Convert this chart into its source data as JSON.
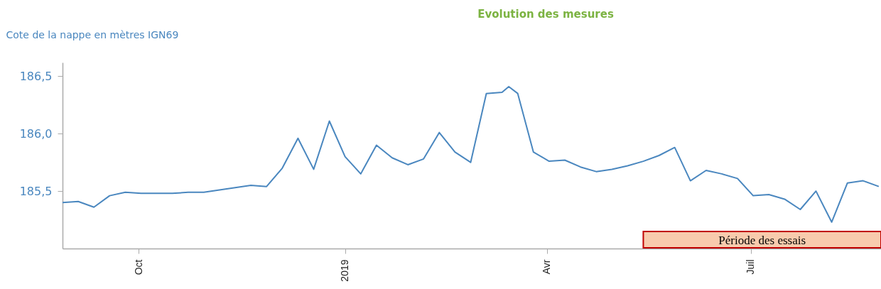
{
  "chart_data": {
    "type": "line",
    "title": "Evolution des mesures",
    "ylabel": "Cote de la nappe en mètres IGN69",
    "x": [
      "2018-08-28",
      "2018-09-04",
      "2018-09-11",
      "2018-09-18",
      "2018-09-25",
      "2018-10-02",
      "2018-10-09",
      "2018-10-16",
      "2018-10-23",
      "2018-10-30",
      "2018-11-06",
      "2018-11-13",
      "2018-11-20",
      "2018-11-27",
      "2018-12-04",
      "2018-12-11",
      "2018-12-18",
      "2018-12-25",
      "2019-01-01",
      "2019-01-08",
      "2019-01-15",
      "2019-01-22",
      "2019-01-29",
      "2019-02-05",
      "2019-02-12",
      "2019-02-19",
      "2019-02-26",
      "2019-03-05",
      "2019-03-12",
      "2019-03-15",
      "2019-03-19",
      "2019-03-26",
      "2019-04-02",
      "2019-04-09",
      "2019-04-16",
      "2019-04-23",
      "2019-04-30",
      "2019-05-07",
      "2019-05-14",
      "2019-05-21",
      "2019-05-28",
      "2019-06-04",
      "2019-06-11",
      "2019-06-18",
      "2019-06-25",
      "2019-07-02",
      "2019-07-09",
      "2019-07-16",
      "2019-07-23",
      "2019-07-30",
      "2019-08-06",
      "2019-08-13",
      "2019-08-20",
      "2019-08-27"
    ],
    "series": [
      {
        "color": "#4a87bf",
        "values": [
          185.4,
          185.41,
          185.36,
          185.46,
          185.49,
          185.48,
          185.48,
          185.48,
          185.49,
          185.49,
          185.51,
          185.53,
          185.55,
          185.54,
          185.7,
          185.96,
          185.69,
          186.11,
          185.8,
          185.65,
          185.9,
          185.79,
          185.73,
          185.78,
          186.01,
          185.84,
          185.75,
          186.35,
          186.36,
          186.41,
          186.35,
          185.84,
          185.76,
          185.77,
          185.71,
          185.67,
          185.69,
          185.72,
          185.76,
          185.81,
          185.88,
          185.59,
          185.68,
          185.65,
          185.61,
          185.46,
          185.47,
          185.43,
          185.34,
          185.5,
          185.23,
          185.57,
          185.59,
          185.54
        ]
      }
    ],
    "xlim": [
      "2018-08-28",
      "2019-08-28"
    ],
    "xticks": [
      {
        "value": "2018-10-01",
        "label": "Oct"
      },
      {
        "value": "2019-01-01",
        "label": "2019"
      },
      {
        "value": "2019-04-01",
        "label": "Avr"
      },
      {
        "value": "2019-07-01",
        "label": "Juil"
      }
    ],
    "ylim": [
      185.0,
      186.62
    ],
    "yticks": [
      {
        "value": 185.5,
        "label": "185,5"
      },
      {
        "value": 186.0,
        "label": "186,0"
      },
      {
        "value": 186.5,
        "label": "186,5"
      }
    ],
    "bands": [
      {
        "axis": "x",
        "from": "2019-05-14",
        "to": "2019-08-28",
        "label": "Période des essais",
        "color": "#f8cbad"
      }
    ],
    "grid": false,
    "marker": "none",
    "line_style": "solid"
  }
}
